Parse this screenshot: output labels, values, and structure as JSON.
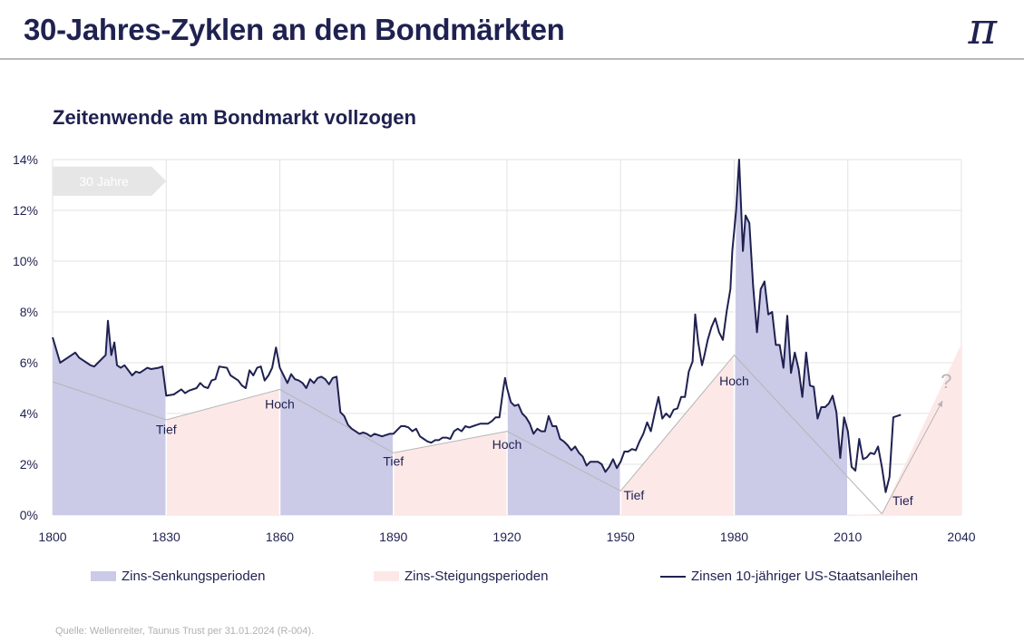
{
  "header": {
    "title": "30-Jahres-Zyklen an den Bondmärkten",
    "logo_glyph": "π"
  },
  "chart_data": {
    "type": "line",
    "title": "Zeitenwende am Bondmarkt vollzogen",
    "xlim": [
      1800,
      2040
    ],
    "ylim": [
      0,
      14
    ],
    "x_ticks": [
      1800,
      1830,
      1860,
      1890,
      1920,
      1950,
      1980,
      2010,
      2040
    ],
    "x_tick_labels": [
      "1800",
      "1830",
      "1860",
      "1890",
      "1920",
      "1950",
      "1980",
      "2010",
      "2040"
    ],
    "y_ticks": [
      0,
      2,
      4,
      6,
      8,
      10,
      12,
      14
    ],
    "y_tick_labels": [
      "0%",
      "2%",
      "4%",
      "6%",
      "8%",
      "10%",
      "12%",
      "14%"
    ],
    "grid": true,
    "colors": {
      "falling": "#cbcbe8",
      "rising": "#fde8e8",
      "line": "#1f2150",
      "trend": "#b5b5b5",
      "arrow_bg": "#e6e6e6"
    },
    "periods": [
      {
        "type": "falling",
        "start": 1800,
        "end": 1830,
        "start_trend": 5.25,
        "end_trend": 3.75
      },
      {
        "type": "rising",
        "start": 1830,
        "end": 1860,
        "start_trend": 3.75,
        "end_trend": 4.95
      },
      {
        "type": "falling",
        "start": 1860,
        "end": 1890,
        "start_trend": 4.95,
        "end_trend": 2.45
      },
      {
        "type": "rising",
        "start": 1890,
        "end": 1920,
        "start_trend": 2.45,
        "end_trend": 3.3
      },
      {
        "type": "falling",
        "start": 1920,
        "end": 1950,
        "start_trend": 3.3,
        "end_trend": 0.95
      },
      {
        "type": "rising",
        "start": 1950,
        "end": 1980,
        "start_trend": 0.95,
        "end_trend": 6.3
      },
      {
        "type": "falling",
        "start": 1980,
        "end": 2010,
        "start_trend": 6.3,
        "end_trend": 1.6
      },
      {
        "type": "rising",
        "start": 2010,
        "end": 2040,
        "start_trend": 1.6,
        "end_trend": 6.75
      }
    ],
    "trend_points": [
      [
        1800,
        5.25
      ],
      [
        1830,
        3.75
      ],
      [
        1860,
        4.95
      ],
      [
        1890,
        2.45
      ],
      [
        1920,
        3.3
      ],
      [
        1950,
        0.95
      ],
      [
        1980,
        6.3
      ],
      [
        2019,
        0.05
      ]
    ],
    "forecast_arrow": {
      "from": [
        2019,
        0.05
      ],
      "to": [
        2035,
        4.5
      ],
      "label": "?",
      "label_x": 2036,
      "label_y": 5.0
    },
    "cycle_arrow": {
      "label": "30 Jahre",
      "start": 1800,
      "end": 1830,
      "y_center": 13.15,
      "height": 1.15
    },
    "annotations": [
      {
        "text": "Tief",
        "x": 1830,
        "y": 3.2
      },
      {
        "text": "Hoch",
        "x": 1860,
        "y": 4.2
      },
      {
        "text": "Tief",
        "x": 1890,
        "y": 1.95
      },
      {
        "text": "Hoch",
        "x": 1920,
        "y": 2.6
      },
      {
        "text": "Tief",
        "x": 1953.5,
        "y": 0.6
      },
      {
        "text": "Hoch",
        "x": 1980,
        "y": 5.1
      },
      {
        "text": "Tief",
        "x": 2024.5,
        "y": 0.4
      }
    ],
    "series": [
      {
        "name": "Zinsen 10-jähriger US-Staatsanleihen",
        "points": [
          [
            1800,
            7.0
          ],
          [
            1802,
            6.0
          ],
          [
            1804,
            6.2
          ],
          [
            1806,
            6.4
          ],
          [
            1807,
            6.2
          ],
          [
            1809,
            6.0
          ],
          [
            1810,
            5.9
          ],
          [
            1811,
            5.85
          ],
          [
            1812,
            6.0
          ],
          [
            1814,
            6.3
          ],
          [
            1814.6,
            7.65
          ],
          [
            1815.5,
            6.3
          ],
          [
            1816.3,
            6.8
          ],
          [
            1817,
            5.9
          ],
          [
            1818,
            5.8
          ],
          [
            1819,
            5.9
          ],
          [
            1820,
            5.7
          ],
          [
            1821,
            5.5
          ],
          [
            1822,
            5.65
          ],
          [
            1823,
            5.6
          ],
          [
            1824,
            5.7
          ],
          [
            1825,
            5.8
          ],
          [
            1826,
            5.75
          ],
          [
            1828,
            5.8
          ],
          [
            1829,
            5.85
          ],
          [
            1830,
            4.7
          ],
          [
            1832,
            4.75
          ],
          [
            1834,
            4.95
          ],
          [
            1835,
            4.8
          ],
          [
            1836,
            4.9
          ],
          [
            1838,
            5.0
          ],
          [
            1839,
            5.2
          ],
          [
            1840,
            5.05
          ],
          [
            1841,
            5.0
          ],
          [
            1842,
            5.3
          ],
          [
            1843,
            5.35
          ],
          [
            1844,
            5.85
          ],
          [
            1846,
            5.8
          ],
          [
            1847,
            5.5
          ],
          [
            1849,
            5.3
          ],
          [
            1850,
            5.1
          ],
          [
            1851,
            5.0
          ],
          [
            1852,
            5.7
          ],
          [
            1853,
            5.5
          ],
          [
            1854,
            5.8
          ],
          [
            1855,
            5.85
          ],
          [
            1856,
            5.3
          ],
          [
            1857,
            5.5
          ],
          [
            1858,
            5.8
          ],
          [
            1859,
            6.6
          ],
          [
            1860,
            5.8
          ],
          [
            1861,
            5.5
          ],
          [
            1862,
            5.2
          ],
          [
            1863,
            5.55
          ],
          [
            1864,
            5.35
          ],
          [
            1865,
            5.3
          ],
          [
            1866,
            5.2
          ],
          [
            1867,
            5.0
          ],
          [
            1868,
            5.35
          ],
          [
            1869,
            5.2
          ],
          [
            1870,
            5.4
          ],
          [
            1871,
            5.45
          ],
          [
            1872,
            5.35
          ],
          [
            1873,
            5.15
          ],
          [
            1874,
            5.4
          ],
          [
            1875,
            5.45
          ],
          [
            1876,
            4.05
          ],
          [
            1877,
            3.9
          ],
          [
            1878,
            3.55
          ],
          [
            1879,
            3.4
          ],
          [
            1880,
            3.3
          ],
          [
            1881,
            3.2
          ],
          [
            1882,
            3.25
          ],
          [
            1883,
            3.2
          ],
          [
            1884,
            3.1
          ],
          [
            1885,
            3.2
          ],
          [
            1886,
            3.15
          ],
          [
            1887,
            3.1
          ],
          [
            1888,
            3.15
          ],
          [
            1889,
            3.2
          ],
          [
            1890,
            3.2
          ],
          [
            1891,
            3.35
          ],
          [
            1892,
            3.5
          ],
          [
            1893,
            3.5
          ],
          [
            1894,
            3.45
          ],
          [
            1895,
            3.3
          ],
          [
            1896,
            3.4
          ],
          [
            1897,
            3.1
          ],
          [
            1898,
            3.0
          ],
          [
            1899,
            2.9
          ],
          [
            1900,
            2.85
          ],
          [
            1901,
            2.95
          ],
          [
            1902,
            2.95
          ],
          [
            1903,
            3.05
          ],
          [
            1904,
            3.05
          ],
          [
            1905,
            3.0
          ],
          [
            1906,
            3.3
          ],
          [
            1907,
            3.4
          ],
          [
            1908,
            3.3
          ],
          [
            1909,
            3.5
          ],
          [
            1910,
            3.45
          ],
          [
            1911,
            3.5
          ],
          [
            1912,
            3.55
          ],
          [
            1913,
            3.6
          ],
          [
            1914,
            3.6
          ],
          [
            1915,
            3.6
          ],
          [
            1916,
            3.7
          ],
          [
            1917,
            3.85
          ],
          [
            1918,
            3.85
          ],
          [
            1919,
            4.95
          ],
          [
            1919.5,
            5.4
          ],
          [
            1920,
            5.0
          ],
          [
            1921,
            4.45
          ],
          [
            1922,
            4.3
          ],
          [
            1923,
            4.35
          ],
          [
            1924,
            4.0
          ],
          [
            1925,
            3.85
          ],
          [
            1926,
            3.6
          ],
          [
            1927,
            3.2
          ],
          [
            1928,
            3.4
          ],
          [
            1929,
            3.3
          ],
          [
            1930,
            3.3
          ],
          [
            1931,
            3.9
          ],
          [
            1932,
            3.5
          ],
          [
            1933,
            3.5
          ],
          [
            1934,
            3.0
          ],
          [
            1935,
            2.9
          ],
          [
            1936,
            2.75
          ],
          [
            1937,
            2.55
          ],
          [
            1938,
            2.7
          ],
          [
            1939,
            2.45
          ],
          [
            1940,
            2.3
          ],
          [
            1941,
            1.95
          ],
          [
            1942,
            2.1
          ],
          [
            1944,
            2.1
          ],
          [
            1945,
            2.0
          ],
          [
            1946,
            1.7
          ],
          [
            1947,
            1.9
          ],
          [
            1948,
            2.2
          ],
          [
            1949,
            1.85
          ],
          [
            1950,
            2.1
          ],
          [
            1951,
            2.5
          ],
          [
            1952,
            2.5
          ],
          [
            1953,
            2.6
          ],
          [
            1954,
            2.55
          ],
          [
            1955,
            2.9
          ],
          [
            1956,
            3.2
          ],
          [
            1957,
            3.65
          ],
          [
            1958,
            3.3
          ],
          [
            1959,
            4.0
          ],
          [
            1960,
            4.65
          ],
          [
            1961,
            3.8
          ],
          [
            1962,
            4.0
          ],
          [
            1963,
            3.85
          ],
          [
            1964,
            4.15
          ],
          [
            1965,
            4.2
          ],
          [
            1966,
            4.65
          ],
          [
            1967,
            4.65
          ],
          [
            1968,
            5.65
          ],
          [
            1969,
            6.05
          ],
          [
            1969.7,
            7.9
          ],
          [
            1970.5,
            6.8
          ],
          [
            1971.5,
            5.9
          ],
          [
            1972,
            6.2
          ],
          [
            1973,
            6.9
          ],
          [
            1974,
            7.4
          ],
          [
            1975,
            7.75
          ],
          [
            1976,
            7.2
          ],
          [
            1977,
            6.9
          ],
          [
            1978,
            8.0
          ],
          [
            1979,
            8.9
          ],
          [
            1979.5,
            10.4
          ],
          [
            1980.5,
            12.0
          ],
          [
            1981.3,
            14.0
          ],
          [
            1982.3,
            10.4
          ],
          [
            1983,
            11.8
          ],
          [
            1984,
            11.5
          ],
          [
            1985,
            9.0
          ],
          [
            1986,
            7.2
          ],
          [
            1987,
            8.9
          ],
          [
            1988,
            9.2
          ],
          [
            1989,
            7.9
          ],
          [
            1990,
            8.0
          ],
          [
            1991,
            6.7
          ],
          [
            1992,
            6.7
          ],
          [
            1993,
            5.8
          ],
          [
            1994,
            7.85
          ],
          [
            1995,
            5.6
          ],
          [
            1996,
            6.4
          ],
          [
            1997,
            5.75
          ],
          [
            1998,
            4.65
          ],
          [
            1999,
            6.4
          ],
          [
            2000,
            5.1
          ],
          [
            2001,
            5.05
          ],
          [
            2002,
            3.8
          ],
          [
            2003,
            4.25
          ],
          [
            2004,
            4.25
          ],
          [
            2005,
            4.4
          ],
          [
            2006,
            4.7
          ],
          [
            2007,
            4.05
          ],
          [
            2008,
            2.25
          ],
          [
            2009,
            3.85
          ],
          [
            2010,
            3.3
          ],
          [
            2011,
            1.9
          ],
          [
            2012,
            1.75
          ],
          [
            2013,
            3.0
          ],
          [
            2014,
            2.2
          ],
          [
            2015,
            2.27
          ],
          [
            2016,
            2.45
          ],
          [
            2017,
            2.4
          ],
          [
            2018,
            2.7
          ],
          [
            2019,
            1.9
          ],
          [
            2020,
            0.9
          ],
          [
            2021,
            1.5
          ],
          [
            2022,
            3.85
          ],
          [
            2023,
            3.9
          ],
          [
            2024,
            3.95
          ]
        ]
      }
    ],
    "legend": [
      {
        "label": "Zins-Senkungsperioden",
        "kind": "falling"
      },
      {
        "label": "Zins-Steigungsperioden",
        "kind": "rising"
      },
      {
        "label": "Zinsen 10-jähriger US-Staatsanleihen",
        "kind": "line"
      }
    ],
    "source": "Quelle: Wellenreiter, Taunus Trust per 31.01.2024 (R-004)."
  }
}
